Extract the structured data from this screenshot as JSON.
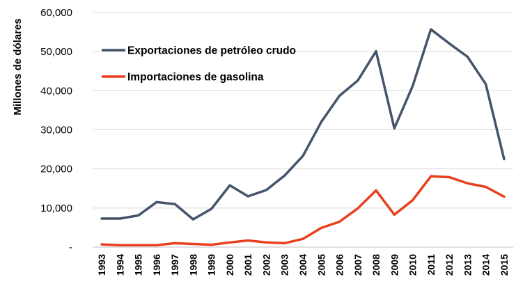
{
  "chart_data": {
    "type": "line",
    "title": "",
    "xlabel": "",
    "ylabel": "Millones de dólares",
    "ylim": [
      0,
      60000
    ],
    "y_ticks": [
      0,
      10000,
      20000,
      30000,
      40000,
      50000,
      60000
    ],
    "y_tick_labels": [
      "-",
      "10,000",
      "20,000",
      "30,000",
      "40,000",
      "50,000",
      "60,000"
    ],
    "grid": "horizontal",
    "legend": "top-left",
    "categories": [
      "1993",
      "1994",
      "1995",
      "1996",
      "1997",
      "1998",
      "1999",
      "2000",
      "2001",
      "2002",
      "2003",
      "2004",
      "2005",
      "2006",
      "2007",
      "2008",
      "2009",
      "2010",
      "2011",
      "2012",
      "2013",
      "2014",
      "2015"
    ],
    "series": [
      {
        "name": "Exportaciones de petróleo crudo",
        "color": "#44546a",
        "values": [
          7300,
          7300,
          8100,
          11500,
          11000,
          7100,
          9800,
          15800,
          13000,
          14600,
          18300,
          23300,
          32000,
          38700,
          42600,
          50100,
          30400,
          41200,
          55700,
          52100,
          48700,
          41700,
          22500
        ]
      },
      {
        "name": "Importaciones de gasolina",
        "color": "#e8401c",
        "values": [
          700,
          500,
          500,
          500,
          1000,
          800,
          600,
          1200,
          1700,
          1200,
          1000,
          2100,
          4900,
          6500,
          9900,
          14500,
          8300,
          12000,
          18100,
          17900,
          16300,
          15400,
          12900
        ]
      }
    ]
  }
}
